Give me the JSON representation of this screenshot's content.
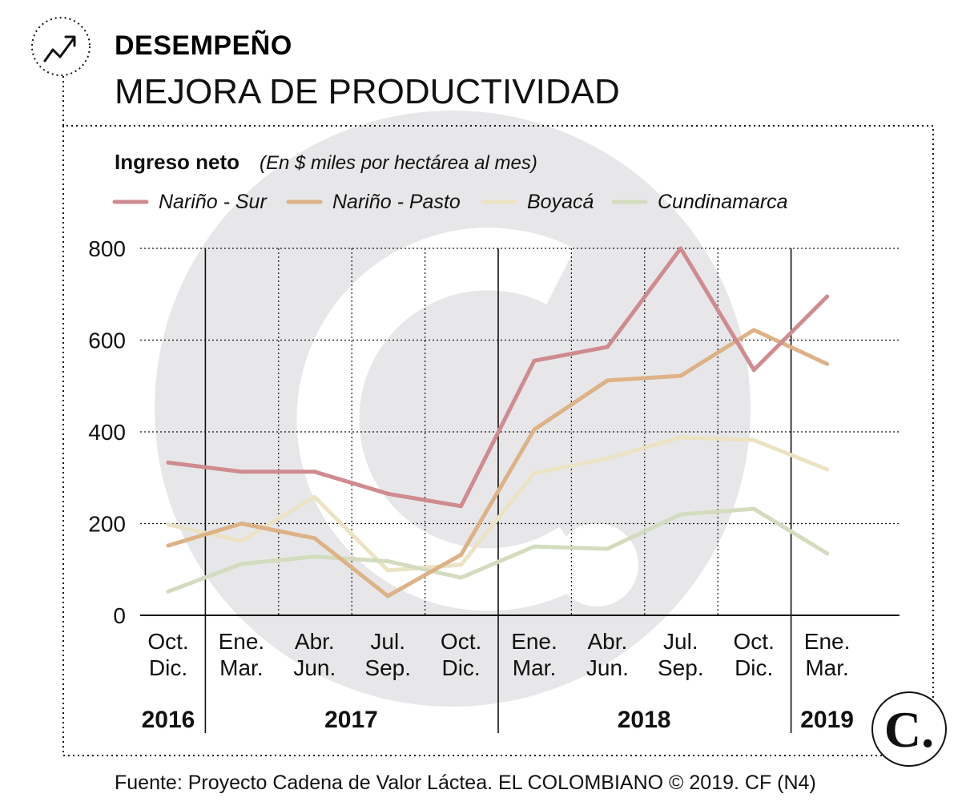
{
  "header": {
    "section": "DESEMPEÑO",
    "title": "MEJORA DE PRODUCTIVIDAD",
    "icon": "trend-up-icon"
  },
  "chart_data": {
    "type": "line",
    "subtitle": "Ingreso neto",
    "unit_note": "(En $ miles por hectárea al mes)",
    "ylim": [
      0,
      800
    ],
    "yticks": [
      0,
      200,
      400,
      600,
      800
    ],
    "grid": true,
    "legend_position": "top",
    "categories": [
      {
        "top": "Oct.",
        "bottom": "Dic."
      },
      {
        "top": "Ene.",
        "bottom": "Mar."
      },
      {
        "top": "Abr.",
        "bottom": "Jun."
      },
      {
        "top": "Jul.",
        "bottom": "Sep."
      },
      {
        "top": "Oct.",
        "bottom": "Dic."
      },
      {
        "top": "Ene.",
        "bottom": "Mar."
      },
      {
        "top": "Abr.",
        "bottom": "Jun."
      },
      {
        "top": "Jul.",
        "bottom": "Sep."
      },
      {
        "top": "Oct.",
        "bottom": "Dic."
      },
      {
        "top": "Ene.",
        "bottom": "Mar."
      }
    ],
    "years": [
      {
        "label": "2016",
        "start": 0,
        "end": 0
      },
      {
        "label": "2017",
        "start": 1,
        "end": 4
      },
      {
        "label": "2018",
        "start": 5,
        "end": 8
      },
      {
        "label": "2019",
        "start": 9,
        "end": 9
      }
    ],
    "series": [
      {
        "name": "Boyacá",
        "color": "#ece3c4",
        "values": [
          198,
          162,
          258,
          98,
          110,
          310,
          342,
          388,
          382,
          318
        ]
      },
      {
        "name": "Cundinamarca",
        "color": "#d3dcbe",
        "values": [
          52,
          112,
          128,
          118,
          82,
          150,
          145,
          220,
          232,
          135
        ]
      },
      {
        "name": "Nariño - Pasto",
        "color": "#ddb286",
        "values": [
          152,
          200,
          168,
          42,
          132,
          405,
          512,
          522,
          622,
          548
        ]
      },
      {
        "name": "Nariño - Sur",
        "color": "#cf8b8f",
        "values": [
          333,
          313,
          313,
          265,
          238,
          555,
          585,
          800,
          535,
          695
        ]
      }
    ],
    "legend_order": [
      "Nariño - Sur",
      "Nariño - Pasto",
      "Boyacá",
      "Cundinamarca"
    ]
  },
  "footer": {
    "source": "Fuente: Proyecto Cadena de Valor Láctea. EL COLOMBIANO © 2019. CF (N4)",
    "logo_text": "C."
  }
}
